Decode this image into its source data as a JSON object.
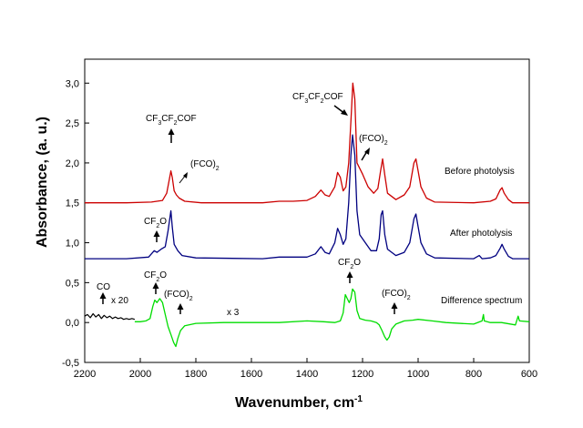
{
  "chart_data": {
    "type": "line",
    "xlabel": "Wavenumber, cm",
    "xlabel_sup": "-1",
    "ylabel": "Absorbance, (a. u.)",
    "xlim": [
      2200,
      600
    ],
    "ylim": [
      -0.5,
      3.3
    ],
    "x_ticks": [
      2200,
      2000,
      1800,
      1600,
      1400,
      1200,
      1000,
      800,
      600
    ],
    "x_tick_labels": [
      "2200",
      "2000",
      "1800",
      "1600",
      "1400",
      "1200",
      "1000",
      "800",
      "600"
    ],
    "y_ticks": [
      -0.5,
      0,
      0.5,
      1,
      1.5,
      2,
      2.5,
      3
    ],
    "y_tick_labels": [
      "-0,5",
      "0,0",
      "0,5",
      "1,0",
      "1,5",
      "2,0",
      "2,5",
      "3,0"
    ],
    "grid": false,
    "series": [
      {
        "name": "Before photolysis",
        "color": "#cc0000",
        "points": [
          [
            2200,
            1.5
          ],
          [
            2050,
            1.5
          ],
          [
            1960,
            1.51
          ],
          [
            1920,
            1.53
          ],
          [
            1905,
            1.62
          ],
          [
            1895,
            1.8
          ],
          [
            1890,
            1.9
          ],
          [
            1885,
            1.82
          ],
          [
            1878,
            1.65
          ],
          [
            1870,
            1.6
          ],
          [
            1860,
            1.56
          ],
          [
            1840,
            1.52
          ],
          [
            1780,
            1.5
          ],
          [
            1560,
            1.5
          ],
          [
            1500,
            1.52
          ],
          [
            1450,
            1.52
          ],
          [
            1400,
            1.53
          ],
          [
            1370,
            1.58
          ],
          [
            1350,
            1.66
          ],
          [
            1335,
            1.6
          ],
          [
            1320,
            1.58
          ],
          [
            1300,
            1.7
          ],
          [
            1290,
            1.88
          ],
          [
            1280,
            1.82
          ],
          [
            1270,
            1.65
          ],
          [
            1260,
            1.7
          ],
          [
            1250,
            2.0
          ],
          [
            1240,
            2.65
          ],
          [
            1235,
            3.0
          ],
          [
            1228,
            2.8
          ],
          [
            1220,
            2.0
          ],
          [
            1200,
            1.86
          ],
          [
            1180,
            1.7
          ],
          [
            1160,
            1.62
          ],
          [
            1145,
            1.68
          ],
          [
            1135,
            1.9
          ],
          [
            1128,
            2.05
          ],
          [
            1120,
            1.85
          ],
          [
            1110,
            1.62
          ],
          [
            1080,
            1.54
          ],
          [
            1050,
            1.6
          ],
          [
            1030,
            1.7
          ],
          [
            1015,
            2.0
          ],
          [
            1008,
            2.05
          ],
          [
            1000,
            1.9
          ],
          [
            990,
            1.7
          ],
          [
            970,
            1.56
          ],
          [
            940,
            1.51
          ],
          [
            800,
            1.5
          ],
          [
            740,
            1.52
          ],
          [
            720,
            1.55
          ],
          [
            705,
            1.66
          ],
          [
            698,
            1.69
          ],
          [
            690,
            1.62
          ],
          [
            675,
            1.54
          ],
          [
            660,
            1.5
          ],
          [
            600,
            1.5
          ]
        ]
      },
      {
        "name": "After photolysis",
        "color": "#000080",
        "points": [
          [
            2200,
            0.8
          ],
          [
            2050,
            0.8
          ],
          [
            1970,
            0.82
          ],
          [
            1960,
            0.86
          ],
          [
            1950,
            0.9
          ],
          [
            1940,
            0.88
          ],
          [
            1925,
            0.92
          ],
          [
            1910,
            0.95
          ],
          [
            1900,
            1.15
          ],
          [
            1890,
            1.4
          ],
          [
            1885,
            1.2
          ],
          [
            1878,
            0.98
          ],
          [
            1865,
            0.9
          ],
          [
            1850,
            0.84
          ],
          [
            1800,
            0.81
          ],
          [
            1560,
            0.8
          ],
          [
            1500,
            0.82
          ],
          [
            1400,
            0.82
          ],
          [
            1370,
            0.86
          ],
          [
            1350,
            0.95
          ],
          [
            1335,
            0.88
          ],
          [
            1320,
            0.86
          ],
          [
            1300,
            1.0
          ],
          [
            1290,
            1.18
          ],
          [
            1280,
            1.1
          ],
          [
            1270,
            0.98
          ],
          [
            1260,
            1.05
          ],
          [
            1250,
            1.5
          ],
          [
            1242,
            2.1
          ],
          [
            1236,
            2.35
          ],
          [
            1228,
            2.1
          ],
          [
            1220,
            1.4
          ],
          [
            1210,
            1.1
          ],
          [
            1190,
            1.0
          ],
          [
            1170,
            0.9
          ],
          [
            1150,
            0.9
          ],
          [
            1140,
            1.05
          ],
          [
            1133,
            1.35
          ],
          [
            1128,
            1.4
          ],
          [
            1120,
            1.1
          ],
          [
            1110,
            0.92
          ],
          [
            1080,
            0.84
          ],
          [
            1050,
            0.88
          ],
          [
            1030,
            1.0
          ],
          [
            1015,
            1.3
          ],
          [
            1008,
            1.36
          ],
          [
            1000,
            1.2
          ],
          [
            990,
            1.0
          ],
          [
            970,
            0.86
          ],
          [
            940,
            0.81
          ],
          [
            800,
            0.8
          ],
          [
            780,
            0.84
          ],
          [
            770,
            0.8
          ],
          [
            740,
            0.81
          ],
          [
            720,
            0.84
          ],
          [
            705,
            0.93
          ],
          [
            698,
            0.98
          ],
          [
            690,
            0.92
          ],
          [
            675,
            0.83
          ],
          [
            660,
            0.8
          ],
          [
            600,
            0.8
          ]
        ]
      },
      {
        "name": "Difference spectrum",
        "color": "#00dd00",
        "points": [
          [
            2020,
            0.01
          ],
          [
            2000,
            0.01
          ],
          [
            1980,
            0.02
          ],
          [
            1965,
            0.05
          ],
          [
            1955,
            0.2
          ],
          [
            1948,
            0.28
          ],
          [
            1940,
            0.25
          ],
          [
            1930,
            0.3
          ],
          [
            1920,
            0.25
          ],
          [
            1910,
            0.1
          ],
          [
            1900,
            -0.05
          ],
          [
            1890,
            -0.15
          ],
          [
            1880,
            -0.25
          ],
          [
            1872,
            -0.3
          ],
          [
            1865,
            -0.2
          ],
          [
            1855,
            -0.1
          ],
          [
            1840,
            -0.04
          ],
          [
            1800,
            -0.01
          ],
          [
            1700,
            0.0
          ],
          [
            1500,
            0.0
          ],
          [
            1400,
            0.02
          ],
          [
            1340,
            0.01
          ],
          [
            1300,
            0.0
          ],
          [
            1280,
            0.02
          ],
          [
            1270,
            0.12
          ],
          [
            1262,
            0.35
          ],
          [
            1255,
            0.3
          ],
          [
            1248,
            0.25
          ],
          [
            1242,
            0.3
          ],
          [
            1236,
            0.42
          ],
          [
            1228,
            0.38
          ],
          [
            1220,
            0.15
          ],
          [
            1210,
            0.05
          ],
          [
            1190,
            0.03
          ],
          [
            1170,
            0.02
          ],
          [
            1150,
            0.0
          ],
          [
            1140,
            -0.03
          ],
          [
            1130,
            -0.1
          ],
          [
            1120,
            -0.18
          ],
          [
            1112,
            -0.22
          ],
          [
            1104,
            -0.18
          ],
          [
            1095,
            -0.08
          ],
          [
            1080,
            -0.02
          ],
          [
            1050,
            0.02
          ],
          [
            1020,
            0.03
          ],
          [
            1000,
            0.04
          ],
          [
            950,
            0.02
          ],
          [
            900,
            0.0
          ],
          [
            800,
            -0.02
          ],
          [
            770,
            0.02
          ],
          [
            765,
            0.1
          ],
          [
            762,
            0.02
          ],
          [
            740,
            0.0
          ],
          [
            700,
            0.0
          ],
          [
            650,
            -0.03
          ],
          [
            640,
            0.08
          ],
          [
            635,
            0.02
          ],
          [
            600,
            0.01
          ]
        ]
      },
      {
        "name": "CO x 20",
        "color": "#000000",
        "points": [
          [
            2200,
            0.08
          ],
          [
            2190,
            0.1
          ],
          [
            2180,
            0.06
          ],
          [
            2170,
            0.11
          ],
          [
            2160,
            0.07
          ],
          [
            2150,
            0.1
          ],
          [
            2140,
            0.05
          ],
          [
            2130,
            0.09
          ],
          [
            2120,
            0.06
          ],
          [
            2110,
            0.08
          ],
          [
            2100,
            0.05
          ],
          [
            2090,
            0.07
          ],
          [
            2080,
            0.05
          ],
          [
            2070,
            0.06
          ],
          [
            2060,
            0.04
          ],
          [
            2050,
            0.05
          ],
          [
            2040,
            0.04
          ],
          [
            2030,
            0.05
          ],
          [
            2020,
            0.04
          ]
        ]
      }
    ],
    "series_labels": [
      "Before photolysis",
      "After photolysis",
      "Difference spectrum"
    ],
    "annotations": {
      "top_cf3": "CF",
      "top_cf3_sub1": "3",
      "top_cf3_mid": "CF",
      "top_cf3_sub2": "2",
      "top_cf3_end": "COF",
      "top_fco": "(FCO)",
      "top_fco_sub": "2",
      "right_cf3": "CF",
      "right_cf3_sub1": "3",
      "right_cf3_mid": "CF",
      "right_cf3_sub2": "2",
      "right_cf3_end": "COF",
      "right_fco": "(FCO)",
      "right_fco_sub": "2",
      "mid_cf2o": "CF",
      "mid_cf2o_sub": "2",
      "mid_cf2o_end": "O",
      "diff_cf2o_left": "CF",
      "diff_cf2o_left_sub": "2",
      "diff_cf2o_left_end": "O",
      "diff_fco_left": "(FCO)",
      "diff_fco_left_sub": "2",
      "diff_cf2o_right": "CF",
      "diff_cf2o_right_sub": "2",
      "diff_cf2o_right_end": "O",
      "diff_fco_right": "(FCO)",
      "diff_fco_right_sub": "2",
      "co": "CO",
      "x20": "x 20",
      "x3": "x 3"
    }
  }
}
